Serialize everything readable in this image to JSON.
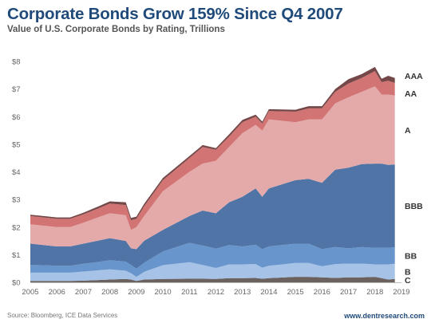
{
  "header": {
    "title": "Corporate Bonds Grow 159% Since Q4 2007",
    "subtitle": "Value of U.S. Corporate Bonds by Rating, Trillions"
  },
  "footer": {
    "source": "Source: Bloomberg, ICE Data Services",
    "site": "www.dentresearch.com"
  },
  "chart_data": {
    "type": "area",
    "stacked": true,
    "x": [
      2005.0,
      2005.5,
      2006.0,
      2006.5,
      2007.0,
      2007.5,
      2008.0,
      2008.6,
      2008.8,
      2009.0,
      2009.3,
      2010.0,
      2011.0,
      2011.5,
      2012.0,
      2012.5,
      2013.0,
      2013.5,
      2013.75,
      2014.0,
      2015.0,
      2015.5,
      2016.0,
      2016.5,
      2017.0,
      2017.5,
      2018.0,
      2018.25,
      2018.5,
      2018.75
    ],
    "series": [
      {
        "name": "C",
        "color": "#6b6260",
        "values": [
          0.05,
          0.05,
          0.05,
          0.05,
          0.06,
          0.08,
          0.1,
          0.12,
          0.1,
          0.05,
          0.1,
          0.12,
          0.13,
          0.13,
          0.12,
          0.15,
          0.15,
          0.16,
          0.13,
          0.15,
          0.2,
          0.2,
          0.18,
          0.16,
          0.18,
          0.18,
          0.2,
          0.15,
          0.1,
          0.12
        ]
      },
      {
        "name": "B",
        "color": "#a6c2e6",
        "values": [
          0.3,
          0.3,
          0.3,
          0.3,
          0.33,
          0.35,
          0.37,
          0.3,
          0.23,
          0.15,
          0.28,
          0.5,
          0.6,
          0.5,
          0.4,
          0.5,
          0.5,
          0.5,
          0.4,
          0.45,
          0.5,
          0.5,
          0.4,
          0.5,
          0.5,
          0.5,
          0.45,
          0.5,
          0.55,
          0.55
        ]
      },
      {
        "name": "BB",
        "color": "#6896cc",
        "values": [
          0.28,
          0.27,
          0.25,
          0.25,
          0.28,
          0.3,
          0.33,
          0.33,
          0.3,
          0.3,
          0.33,
          0.5,
          0.7,
          0.7,
          0.7,
          0.7,
          0.65,
          0.7,
          0.67,
          0.7,
          0.7,
          0.7,
          0.62,
          0.62,
          0.55,
          0.6,
          0.6,
          0.6,
          0.6,
          0.6
        ]
      },
      {
        "name": "BBB",
        "color": "#4f74a5",
        "values": [
          0.77,
          0.73,
          0.7,
          0.7,
          0.73,
          0.77,
          0.8,
          0.75,
          0.6,
          0.7,
          0.8,
          0.78,
          0.97,
          1.27,
          1.28,
          1.55,
          1.8,
          2.04,
          1.9,
          2.1,
          2.3,
          2.35,
          2.4,
          2.8,
          2.92,
          3.0,
          3.05,
          3.05,
          3.0,
          3.0
        ]
      },
      {
        "name": "A",
        "color": "#e4aaaa",
        "values": [
          0.7,
          0.7,
          0.7,
          0.7,
          0.76,
          0.83,
          0.9,
          0.93,
          0.67,
          0.8,
          0.9,
          1.4,
          1.6,
          1.7,
          1.9,
          2.0,
          2.3,
          2.3,
          2.4,
          2.5,
          2.1,
          2.15,
          2.3,
          2.4,
          2.55,
          2.62,
          2.8,
          2.5,
          2.55,
          2.5
        ]
      },
      {
        "name": "AA",
        "color": "#d27474",
        "values": [
          0.3,
          0.3,
          0.3,
          0.3,
          0.3,
          0.32,
          0.35,
          0.37,
          0.35,
          0.3,
          0.35,
          0.4,
          0.5,
          0.6,
          0.4,
          0.38,
          0.4,
          0.3,
          0.25,
          0.3,
          0.38,
          0.4,
          0.4,
          0.42,
          0.5,
          0.5,
          0.55,
          0.45,
          0.5,
          0.45
        ]
      },
      {
        "name": "AAA",
        "color": "#744848",
        "values": [
          0.05,
          0.05,
          0.05,
          0.05,
          0.06,
          0.07,
          0.08,
          0.1,
          0.08,
          0.08,
          0.09,
          0.08,
          0.07,
          0.07,
          0.06,
          0.08,
          0.08,
          0.07,
          0.07,
          0.07,
          0.07,
          0.08,
          0.08,
          0.1,
          0.16,
          0.14,
          0.15,
          0.12,
          0.18,
          0.18
        ]
      }
    ],
    "x_ticks": [
      "2005",
      "2006",
      "2007",
      "2008",
      "2009",
      "2010",
      "2011",
      "2012",
      "2013",
      "2014",
      "2015",
      "2016",
      "2017",
      "2018",
      "2019"
    ],
    "y_ticks": [
      "$0",
      "$1",
      "$2",
      "$3",
      "$4",
      "$5",
      "$6",
      "$7",
      "$8"
    ],
    "xlim": [
      2005,
      2019
    ],
    "ylim": [
      0,
      8
    ],
    "grid": false,
    "legend": "inline-right"
  }
}
